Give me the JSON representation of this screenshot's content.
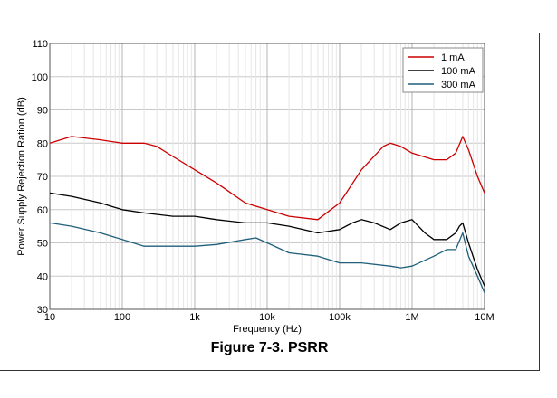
{
  "caption": "Figure 7-3. PSRR",
  "chart_data": {
    "type": "line",
    "xlabel": "Frequency (Hz)",
    "ylabel": "Power Supply Rejection Ration (dB)",
    "xscale": "log",
    "xlim": [
      10,
      10000000
    ],
    "ylim": [
      30,
      110
    ],
    "grid": true,
    "legend_position": "top-right",
    "xticks": [
      {
        "value": 10,
        "label": "10"
      },
      {
        "value": 100,
        "label": "100"
      },
      {
        "value": 1000,
        "label": "1k"
      },
      {
        "value": 10000,
        "label": "10k"
      },
      {
        "value": 100000,
        "label": "100k"
      },
      {
        "value": 1000000,
        "label": "1M"
      },
      {
        "value": 10000000,
        "label": "10M"
      }
    ],
    "yticks": [
      30,
      40,
      50,
      60,
      70,
      80,
      90,
      100,
      110
    ],
    "series": [
      {
        "name": "1 mA",
        "color": "#cc0000",
        "x": [
          10,
          20,
          50,
          100,
          200,
          300,
          500,
          1000,
          2000,
          5000,
          10000,
          20000,
          50000,
          100000,
          200000,
          400000,
          500000,
          700000,
          1000000,
          2000000,
          3000000,
          4000000,
          5000000,
          6000000,
          8000000,
          10000000
        ],
        "y": [
          80,
          82,
          81,
          80,
          80,
          79,
          76,
          72,
          68,
          62,
          60,
          58,
          57,
          62,
          72,
          79,
          80,
          79,
          77,
          75,
          75,
          77,
          82,
          78,
          70,
          65
        ]
      },
      {
        "name": "100 mA",
        "color": "#000000",
        "x": [
          10,
          20,
          50,
          100,
          200,
          500,
          1000,
          2000,
          5000,
          10000,
          20000,
          50000,
          100000,
          150000,
          200000,
          300000,
          500000,
          700000,
          1000000,
          1500000,
          2000000,
          3000000,
          4000000,
          4500000,
          5000000,
          6000000,
          8000000,
          10000000
        ],
        "y": [
          65,
          64,
          62,
          60,
          59,
          58,
          58,
          57,
          56,
          56,
          55,
          53,
          54,
          56,
          57,
          56,
          54,
          56,
          57,
          53,
          51,
          51,
          53,
          55,
          56,
          50,
          42,
          37
        ]
      },
      {
        "name": "300 mA",
        "color": "#1f5f7a",
        "x": [
          10,
          20,
          50,
          100,
          200,
          500,
          1000,
          2000,
          5000,
          7000,
          10000,
          20000,
          50000,
          100000,
          200000,
          500000,
          700000,
          1000000,
          2000000,
          3000000,
          4000000,
          5000000,
          6000000,
          8000000,
          10000000
        ],
        "y": [
          56,
          55,
          53,
          51,
          49,
          49,
          49,
          49.5,
          51,
          51.5,
          50,
          47,
          46,
          44,
          44,
          43,
          42.5,
          43,
          46,
          48,
          48,
          53,
          46,
          40,
          35
        ]
      }
    ]
  }
}
